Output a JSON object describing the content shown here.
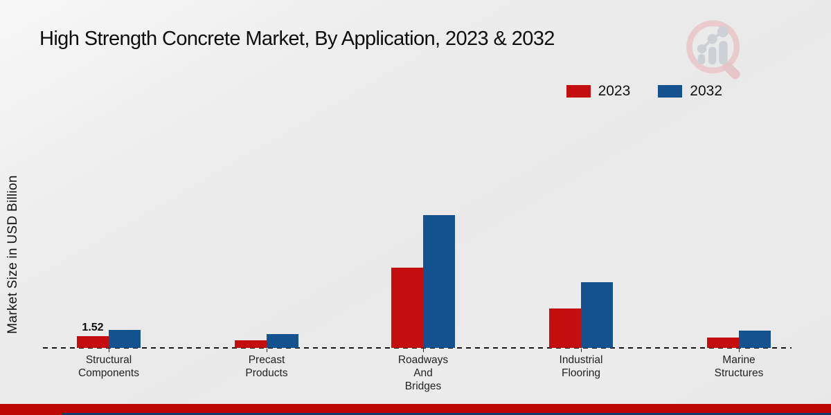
{
  "title": "High Strength Concrete Market, By Application, 2023 & 2032",
  "y_axis_label": "Market Size in USD Billion",
  "legend": {
    "items": [
      {
        "label": "2023",
        "color": "#c40d0e"
      },
      {
        "label": "2032",
        "color": "#14528f"
      }
    ]
  },
  "colors": {
    "red": "#c40d0e",
    "blue": "#14528f",
    "footer_red": "#bb0604",
    "footer_navy": "#1b3a6b",
    "background": "#ebebeb"
  },
  "logo": {
    "name": "market-research-chart-magnifier-logo"
  },
  "chart_data": {
    "type": "bar",
    "title": "High Strength Concrete Market, By Application, 2023 & 2032",
    "xlabel": "",
    "ylabel": "Market Size in USD Billion",
    "categories": [
      "Structural Components",
      "Precast Products",
      "Roadways And Bridges",
      "Industrial Flooring",
      "Marine Structures"
    ],
    "category_lines": [
      [
        "Structural",
        "Components"
      ],
      [
        "Precast",
        "Products"
      ],
      [
        "Roadways",
        "And",
        "Bridges"
      ],
      [
        "Industrial",
        "Flooring"
      ],
      [
        "Marine",
        "Structures"
      ]
    ],
    "series": [
      {
        "name": "2023",
        "color": "#c40d0e",
        "values": [
          1.52,
          1.0,
          10.1,
          5.0,
          1.3
        ]
      },
      {
        "name": "2032",
        "color": "#14528f",
        "values": [
          2.3,
          1.7,
          16.7,
          8.3,
          2.2
        ]
      }
    ],
    "data_labels": [
      {
        "series": "2023",
        "category_index": 0,
        "text": "1.52"
      }
    ],
    "ylim": [
      0,
      18
    ],
    "grid": false,
    "legend_position": "top-right",
    "baseline_style": "dashed"
  }
}
